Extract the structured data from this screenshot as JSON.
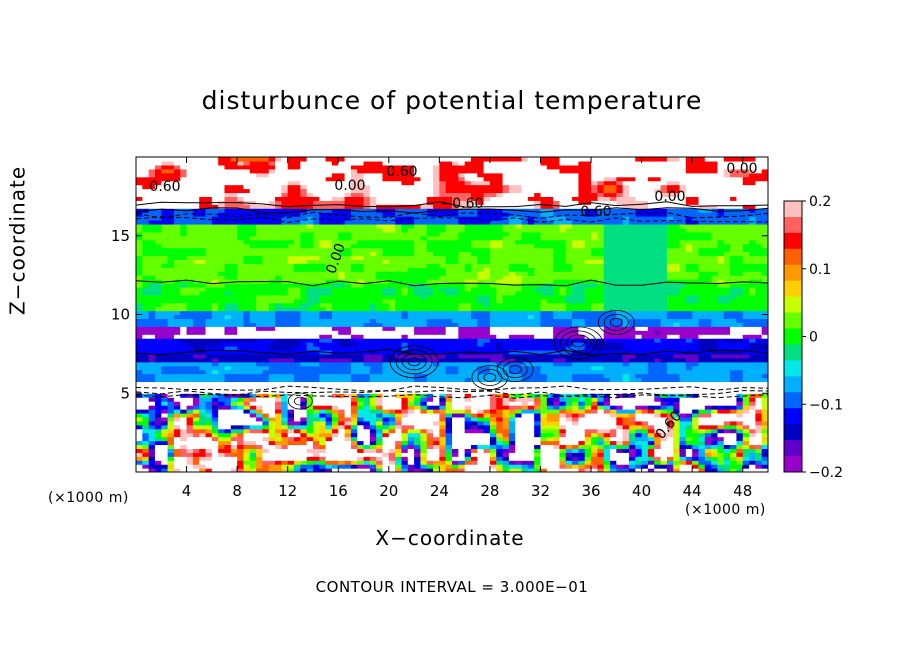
{
  "chart_data": {
    "type": "heatmap",
    "title": "disturbunce of potential temperature",
    "xlabel": "X−coordinate",
    "ylabel": "Z−coordinate",
    "x_unit_left": "(×1000 m)",
    "x_unit_right": "(×1000 m)",
    "footnote": "CONTOUR INTERVAL = 3.000E−01",
    "xlim": [
      0,
      50
    ],
    "ylim": [
      0,
      20
    ],
    "x_ticks": [
      4,
      8,
      12,
      16,
      20,
      24,
      28,
      32,
      36,
      40,
      44,
      48
    ],
    "y_ticks": [
      5,
      10,
      15
    ],
    "colorbar": {
      "min": -0.2,
      "max": 0.2,
      "ticks": [
        0.2,
        0.1,
        0,
        -0.1,
        -0.2
      ],
      "tick_labels": [
        "0.2",
        "0.1",
        "0",
        "−0.1",
        "−0.2"
      ],
      "colors": [
        "#ffc0c0",
        "#ff6060",
        "#ff0000",
        "#ff6000",
        "#ff9900",
        "#ffd000",
        "#c8ff00",
        "#66ff00",
        "#00ff00",
        "#00e080",
        "#00e8e8",
        "#00b0ff",
        "#0066ff",
        "#0000ff",
        "#0000c0",
        "#6000c8",
        "#9900cc"
      ]
    },
    "contour_labels": [
      "0.60",
      "0.00",
      "0.60",
      "−0.60",
      "0.00",
      "0.60",
      "0.00",
      "0.00",
      "0.60"
    ],
    "bands": [
      {
        "z": [
          0,
          5
        ],
        "note": "turbulent mixed layer, values -0.2 to 0.2"
      },
      {
        "z": [
          5,
          5.8
        ],
        "value": -0.25
      },
      {
        "z": [
          5.8,
          7.0
        ],
        "value": -0.08
      },
      {
        "z": [
          7.0,
          7.6
        ],
        "value": -0.15
      },
      {
        "z": [
          7.6,
          8.6
        ],
        "value": -0.12
      },
      {
        "z": [
          8.6,
          9.2
        ],
        "value": -0.2
      },
      {
        "z": [
          9.2,
          10.2
        ],
        "value": -0.08
      },
      {
        "z": [
          10.2,
          12
        ],
        "value": 0.0
      },
      {
        "z": [
          12,
          15.8
        ],
        "value": 0.02
      },
      {
        "z": [
          15.8,
          16.8
        ],
        "value": -0.1
      },
      {
        "z": [
          16.8,
          20
        ],
        "value": 0.25
      }
    ]
  }
}
